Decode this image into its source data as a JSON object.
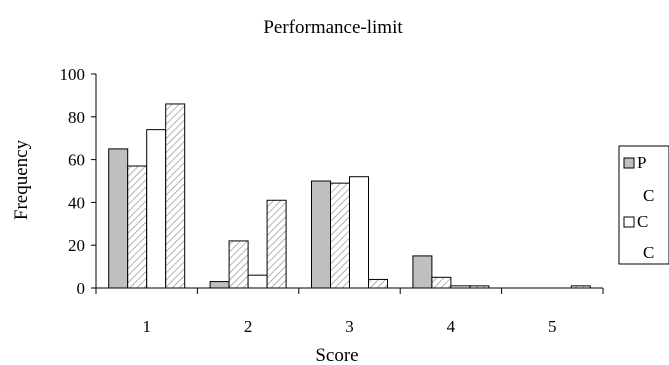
{
  "chart_data": {
    "type": "bar",
    "title": "Performance-limit",
    "xlabel": "Score",
    "ylabel": "Frequency",
    "categories": [
      "1",
      "2",
      "3",
      "4",
      "5"
    ],
    "ylim": [
      0,
      100
    ],
    "yticks": [
      "0",
      "20",
      "40",
      "60",
      "80",
      "100"
    ],
    "grid": false,
    "legend_position": "right",
    "legend_entries": [
      {
        "swatch": "gray",
        "label": [
          "P",
          "C"
        ]
      },
      {
        "swatch": "white",
        "label": [
          "C",
          "C"
        ]
      }
    ],
    "series": [
      {
        "fill": "#bfbfbf",
        "pattern": "solid",
        "values": [
          65,
          3,
          50,
          15,
          0
        ]
      },
      {
        "fill": "#ffffff",
        "pattern": "hatch",
        "values": [
          57,
          22,
          49,
          5,
          0
        ]
      },
      {
        "fill": "#ffffff",
        "pattern": "solid",
        "values": [
          74,
          6,
          52,
          1,
          0
        ]
      },
      {
        "fill": "#ffffff",
        "pattern": "hatch",
        "values": [
          86,
          41,
          4,
          1,
          1
        ]
      }
    ]
  }
}
